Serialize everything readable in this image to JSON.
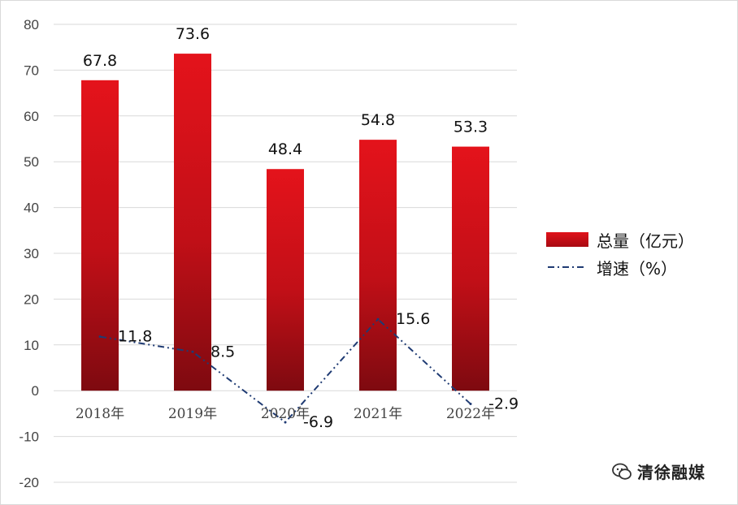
{
  "chart_data": {
    "type": "bar",
    "categories": [
      "2018年",
      "2019年",
      "2020年",
      "2021年",
      "2022年"
    ],
    "series": [
      {
        "name": "总量（亿元）",
        "kind": "bar",
        "values": [
          67.8,
          73.6,
          48.4,
          54.8,
          53.3
        ],
        "color": "#d41118"
      },
      {
        "name": "增速（%）",
        "kind": "line",
        "values": [
          11.8,
          8.5,
          -6.9,
          15.6,
          -2.9
        ],
        "color": "#1f3b73",
        "dash": "dash-dot"
      }
    ],
    "bar_labels": [
      "67.8",
      "73.6",
      "48.4",
      "54.8",
      "53.3"
    ],
    "line_labels": [
      "11.8",
      "8.5",
      "-6.9",
      "15.6",
      "-2.9"
    ],
    "y_ticks": [
      "80",
      "70",
      "60",
      "50",
      "40",
      "30",
      "20",
      "10",
      "0",
      "-10",
      "-20"
    ],
    "ylim": [
      -20,
      80
    ],
    "grid": true,
    "legend_position": "right"
  },
  "legend": {
    "bar_label": "总量（亿元）",
    "line_label": "增速（%）"
  },
  "watermark": {
    "text": "清徐融媒",
    "icon": "wechat-icon"
  }
}
